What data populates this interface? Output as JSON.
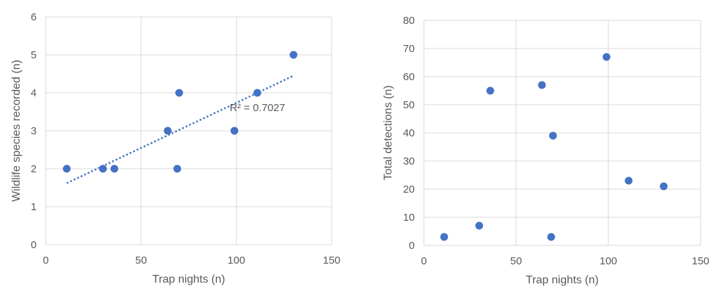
{
  "chart_data": [
    {
      "type": "scatter",
      "title": "",
      "xlabel": "Trap nights (n)",
      "ylabel": "Wildlife species recorded (n)",
      "xlim": [
        0,
        150
      ],
      "ylim": [
        0,
        6
      ],
      "xticks": [
        0,
        50,
        100,
        150
      ],
      "yticks": [
        0,
        1,
        2,
        3,
        4,
        5,
        6
      ],
      "grid": true,
      "marker_color": "#4472c4",
      "series": [
        {
          "points": [
            {
              "x": 11,
              "y": 2
            },
            {
              "x": 30,
              "y": 2
            },
            {
              "x": 36,
              "y": 2
            },
            {
              "x": 64,
              "y": 3
            },
            {
              "x": 69,
              "y": 2
            },
            {
              "x": 70,
              "y": 4
            },
            {
              "x": 99,
              "y": 3
            },
            {
              "x": 111,
              "y": 4
            },
            {
              "x": 130,
              "y": 5
            }
          ]
        }
      ],
      "trendline": {
        "type": "linear",
        "style": "dotted",
        "x": [
          11,
          130
        ],
        "y": [
          1.62,
          4.45
        ]
      },
      "annotations": [
        "R² = 0.7027"
      ]
    },
    {
      "type": "scatter",
      "title": "",
      "xlabel": "Trap nights (n)",
      "ylabel": "Total detections (n)",
      "xlim": [
        0,
        150
      ],
      "ylim": [
        0,
        80
      ],
      "xticks": [
        0,
        50,
        100,
        150
      ],
      "yticks": [
        0,
        10,
        20,
        30,
        40,
        50,
        60,
        70,
        80
      ],
      "grid": true,
      "marker_color": "#4472c4",
      "series": [
        {
          "points": [
            {
              "x": 11,
              "y": 3
            },
            {
              "x": 30,
              "y": 7
            },
            {
              "x": 36,
              "y": 55
            },
            {
              "x": 64,
              "y": 57
            },
            {
              "x": 69,
              "y": 3
            },
            {
              "x": 70,
              "y": 39
            },
            {
              "x": 99,
              "y": 67
            },
            {
              "x": 111,
              "y": 23
            },
            {
              "x": 130,
              "y": 21
            }
          ]
        }
      ]
    }
  ]
}
